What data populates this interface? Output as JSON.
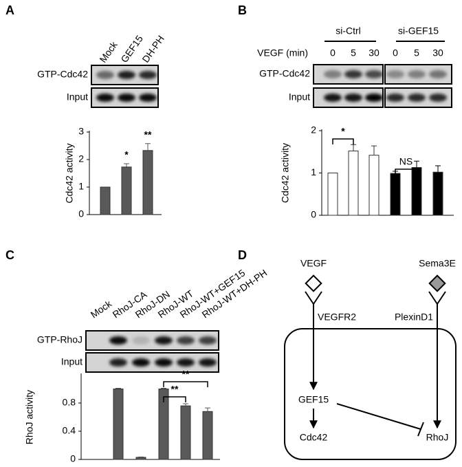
{
  "chart_data": [
    {
      "type": "bar",
      "panel": "A",
      "categories": [
        "Mock",
        "GEF15",
        "DH-PH"
      ],
      "blot_rows": [
        "GTP-Cdc42",
        "Input"
      ],
      "y_label": "Cdc42 activity",
      "ylim": [
        0,
        3
      ],
      "yticks": [
        0,
        1,
        2,
        3
      ],
      "series": [
        {
          "color": "#595959",
          "values": [
            1,
            1.73,
            2.33
          ],
          "errors": [
            0,
            0.12,
            0.25
          ]
        }
      ],
      "annotations": [
        "*",
        "**"
      ]
    },
    {
      "type": "bar",
      "panel": "B",
      "x_label": "VEGF (min)",
      "categories": [
        "0",
        "5",
        "30",
        "0",
        "5",
        "30"
      ],
      "blot_rows": [
        "GTP-Cdc42",
        "Input"
      ],
      "y_label": "Cdc42 activity",
      "ylim": [
        0,
        2
      ],
      "yticks": [
        0,
        1,
        2
      ],
      "series": [
        {
          "name": "si-Ctrl",
          "color": "#ffffff",
          "values": [
            1,
            1.52,
            1.42,
            null,
            null,
            null
          ],
          "errors": [
            0,
            0.15,
            0.22,
            null,
            null,
            null
          ]
        },
        {
          "name": "si-GEF15",
          "color": "#000000",
          "values": [
            null,
            null,
            null,
            0.99,
            1.13,
            1.02
          ],
          "errors": [
            null,
            null,
            null,
            0.05,
            0.15,
            0.15
          ]
        }
      ],
      "annotations": [
        "*",
        "NS"
      ]
    },
    {
      "type": "bar",
      "panel": "C",
      "categories": [
        "Mock",
        "RhoJ-CA",
        "RhoJ-DN",
        "RhoJ-WT",
        "RhoJ-WT+GEF15",
        "RhoJ-WT+DH-PH"
      ],
      "blot_rows": [
        "GTP-RhoJ",
        "Input"
      ],
      "y_label": "RhoJ activity",
      "ylim": [
        0,
        1.2
      ],
      "yticks": [
        0,
        0.4,
        0.8
      ],
      "series": [
        {
          "color": "#595959",
          "values": [
            null,
            1.0,
            0.03,
            1.0,
            0.76,
            0.68
          ],
          "errors": [
            null,
            0.01,
            0.005,
            0.01,
            0.03,
            0.05
          ]
        }
      ],
      "annotations": [
        "**",
        "**"
      ]
    }
  ],
  "diagram": {
    "panel": "D",
    "ligands": [
      "VEGF",
      "Sema3E"
    ],
    "receptors": [
      "VEGFR2",
      "PlexinD1"
    ],
    "nodes": [
      "GEF15",
      "Cdc42",
      "RhoJ"
    ]
  }
}
